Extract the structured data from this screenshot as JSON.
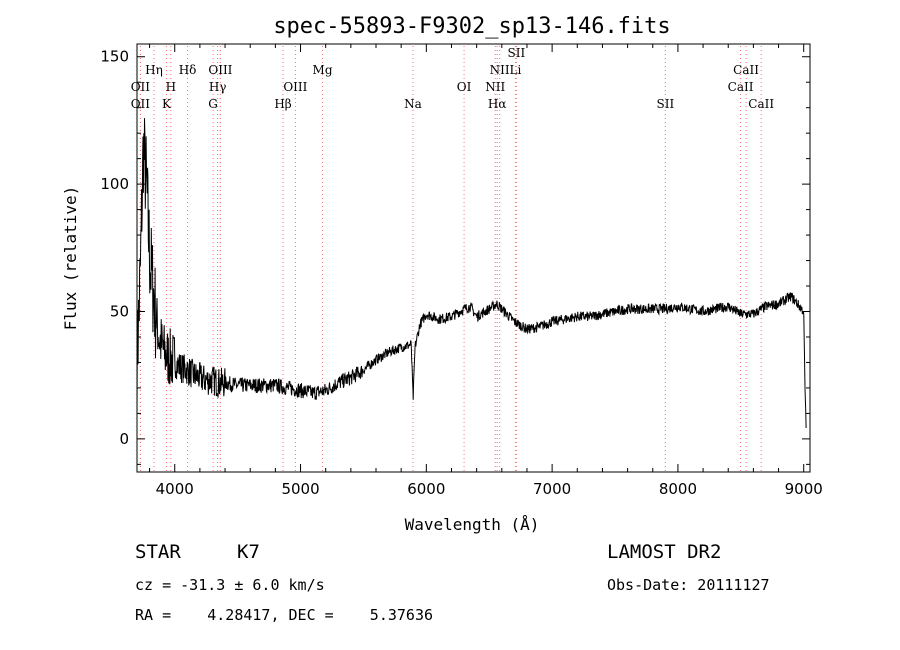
{
  "chart_data": {
    "type": "line",
    "title": "spec-55893-F9302_sp13-146.fits",
    "xlabel": "Wavelength (Å)",
    "ylabel": "Flux (relative)",
    "xlim": [
      3700,
      9050
    ],
    "ylim": [
      -13,
      155
    ],
    "xticks": [
      4000,
      5000,
      6000,
      7000,
      8000,
      9000
    ],
    "yticks": [
      0,
      50,
      100,
      150
    ],
    "grid": false,
    "line_color": "#000000",
    "marker_color": "#ff6e6e",
    "series": [
      {
        "x": [
          3700,
          3725,
          3750,
          3775,
          3800,
          3825,
          3850,
          3875,
          3900,
          3925,
          3950,
          3975,
          4000,
          4050,
          4100,
          4150,
          4200,
          4250,
          4300,
          4350,
          4400,
          4500,
          4600,
          4700,
          4800,
          4900,
          5000,
          5100,
          5200,
          5300,
          5400,
          5500,
          5600,
          5700,
          5800,
          5880,
          5895,
          5910,
          5950,
          6000,
          6100,
          6200,
          6300,
          6350,
          6400,
          6500,
          6560,
          6600,
          6700,
          6800,
          6900,
          7000,
          7100,
          7200,
          7300,
          7400,
          7500,
          7600,
          7700,
          7800,
          7900,
          8000,
          8100,
          8200,
          8300,
          8400,
          8500,
          8600,
          8700,
          8800,
          8900,
          8950,
          9000,
          9010,
          9020
        ],
        "y": [
          30,
          62,
          115,
          100,
          72,
          60,
          48,
          40,
          36,
          33,
          32,
          31,
          30,
          28,
          27,
          25,
          24,
          23,
          23,
          22,
          22,
          21,
          21,
          21,
          21,
          20,
          19,
          18,
          19,
          22,
          24,
          27,
          31,
          34,
          36,
          37,
          15,
          36,
          45,
          49,
          47,
          48,
          51,
          52,
          48,
          51,
          53,
          51,
          46,
          43,
          44,
          46,
          47,
          48,
          48,
          49,
          50,
          51,
          51,
          51,
          51,
          52,
          51,
          50,
          51,
          52,
          49,
          49,
          52,
          53,
          56,
          53,
          50,
          20,
          3
        ]
      }
    ],
    "lines": [
      {
        "name": "OII",
        "x": 3727,
        "row": 3
      },
      {
        "name": "OII",
        "x": 3727,
        "row": 2
      },
      {
        "name": "Hη",
        "x": 3835,
        "row": 1
      },
      {
        "name": "K",
        "x": 3934,
        "row": 3
      },
      {
        "name": "H",
        "x": 3969,
        "row": 2
      },
      {
        "name": "Hδ",
        "x": 4102,
        "row": 1
      },
      {
        "name": "G",
        "x": 4305,
        "row": 3
      },
      {
        "name": "Hγ",
        "x": 4341,
        "row": 2
      },
      {
        "name": "OIII",
        "x": 4363,
        "row": 1
      },
      {
        "name": "Hβ",
        "x": 4861,
        "row": 3
      },
      {
        "name": "OIII",
        "x": 4959,
        "row": 2
      },
      {
        "name": "Mg",
        "x": 5175,
        "row": 1
      },
      {
        "name": "Na",
        "x": 5894,
        "row": 3
      },
      {
        "name": "OI",
        "x": 6300,
        "row": 2
      },
      {
        "name": "NII",
        "x": 6548,
        "row": 2
      },
      {
        "name": "Hα",
        "x": 6563,
        "row": 3
      },
      {
        "name": "NII",
        "x": 6583,
        "row": 1
      },
      {
        "name": "Li",
        "x": 6708,
        "row": 1
      },
      {
        "name": "SII",
        "x": 6716,
        "row": 0
      },
      {
        "name": "SII",
        "x": 7900,
        "row": 3
      },
      {
        "name": "CaII",
        "x": 8498,
        "row": 2
      },
      {
        "name": "CaII",
        "x": 8542,
        "row": 1
      },
      {
        "name": "CaII",
        "x": 8662,
        "row": 3
      }
    ]
  },
  "info": {
    "object_class": "STAR",
    "subclass": "K7",
    "survey": "LAMOST DR2",
    "redshift_text": "cz = -31.3 ± 6.0 km/s",
    "obs_date": "Obs-Date: 20111127",
    "coords": "RA =    4.28417, DEC =    5.37636"
  }
}
